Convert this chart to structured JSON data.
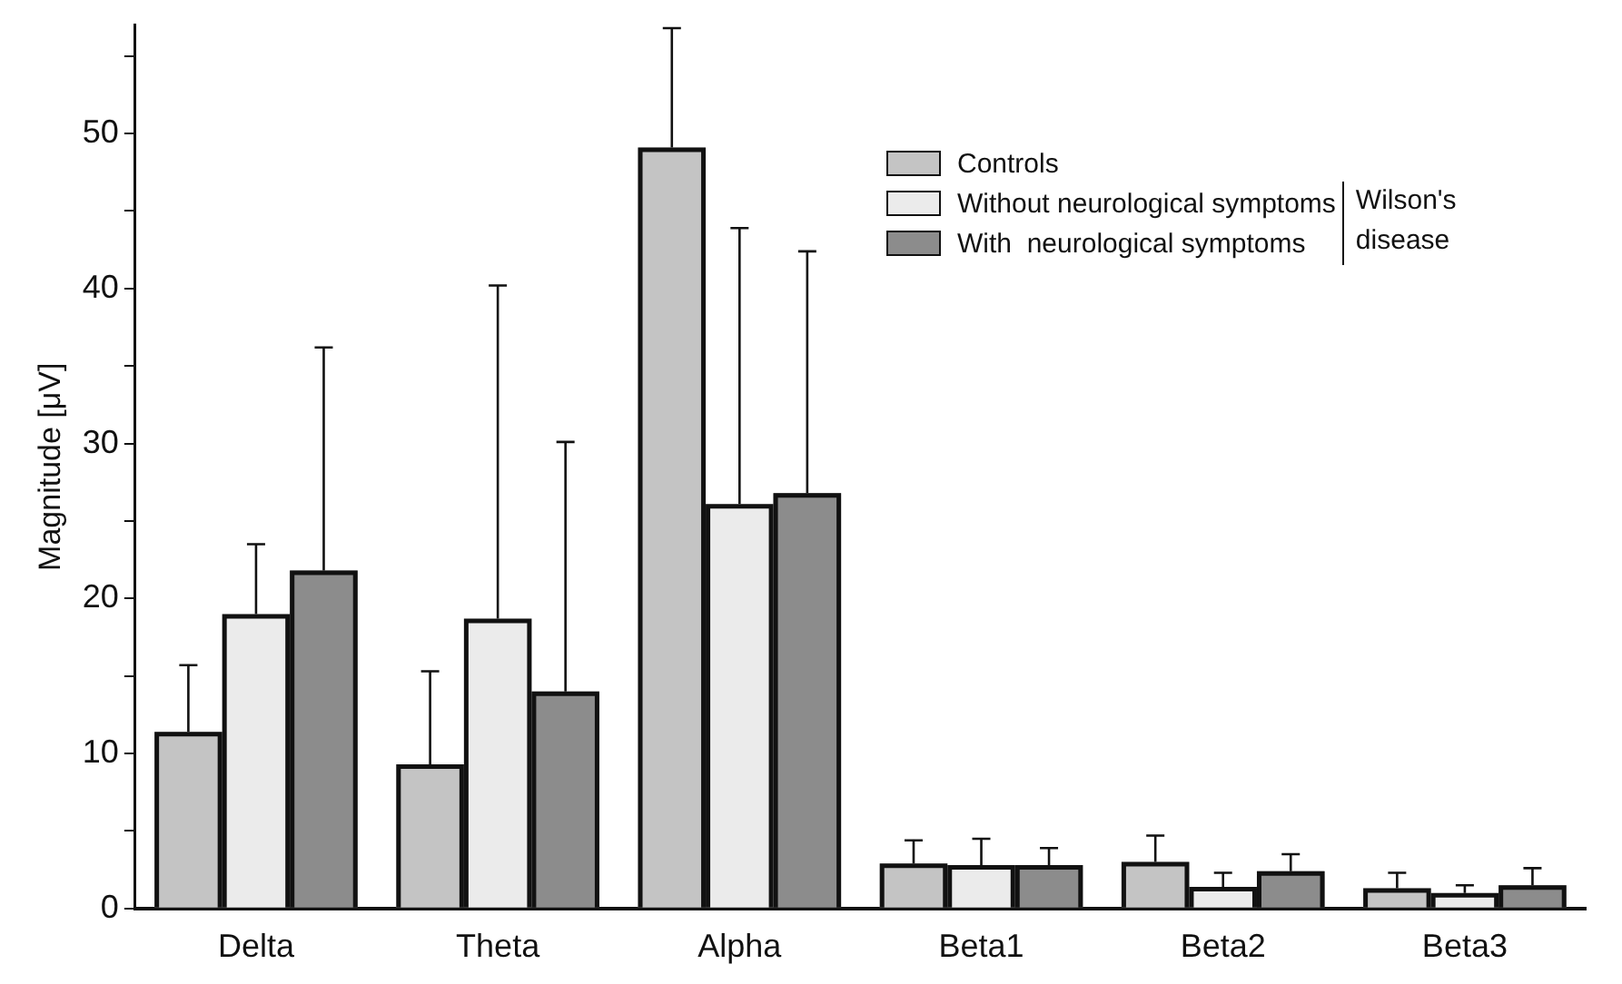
{
  "chart_data": {
    "type": "bar",
    "ylabel": "Magnitude [μV]",
    "categories": [
      "Delta",
      "Theta",
      "Alpha",
      "Beta1",
      "Beta2",
      "Beta3"
    ],
    "series": [
      {
        "name": "Controls",
        "color": "#c4c4c4",
        "values": [
          11.4,
          9.3,
          49.1,
          2.9,
          3.0,
          1.3
        ],
        "errors": [
          [
            11.4,
            15.7
          ],
          [
            9.3,
            15.3
          ],
          [
            49.1,
            56.8
          ],
          [
            2.9,
            4.4
          ],
          [
            3.0,
            4.7
          ],
          [
            1.3,
            2.3
          ]
        ]
      },
      {
        "name": "Without neurological symptoms",
        "color": "#ebebeb",
        "values": [
          19.0,
          18.7,
          26.1,
          2.8,
          1.4,
          1.0
        ],
        "errors": [
          [
            19.0,
            23.5
          ],
          [
            18.7,
            40.2
          ],
          [
            26.1,
            43.9
          ],
          [
            2.8,
            4.5
          ],
          [
            1.4,
            2.3
          ],
          [
            1.0,
            1.5
          ]
        ]
      },
      {
        "name": "With  neurological symptoms",
        "color": "#8c8c8c",
        "values": [
          21.8,
          14.0,
          26.8,
          2.8,
          2.4,
          1.5
        ],
        "errors": [
          [
            21.8,
            36.2
          ],
          [
            14.0,
            30.1
          ],
          [
            26.8,
            42.4
          ],
          [
            2.8,
            3.9
          ],
          [
            2.4,
            3.5
          ],
          [
            1.5,
            2.6
          ]
        ]
      }
    ],
    "ylim": [
      0,
      57
    ],
    "yticks": [
      0,
      {
        "value": 5,
        "label": null
      },
      10,
      {
        "value": 15,
        "label": null
      },
      20,
      {
        "value": 25,
        "label": null
      },
      30,
      {
        "value": 35,
        "label": null
      },
      40,
      {
        "value": 45,
        "label": null
      },
      50,
      {
        "value": 55,
        "label": null
      }
    ],
    "grid": false,
    "legend": "top right",
    "annotations": [
      "Wilson's disease"
    ]
  }
}
